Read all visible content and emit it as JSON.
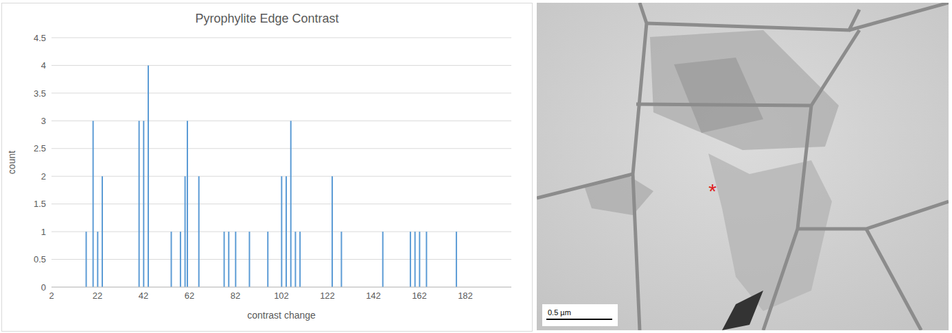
{
  "chart_data": {
    "type": "bar",
    "title": "Pyrophylite Edge Contrast",
    "x_label": "contrast change",
    "y_label": "count",
    "x": [
      17,
      20,
      22,
      24,
      40,
      42,
      44,
      54,
      58,
      60,
      61,
      66,
      77,
      79,
      82,
      88,
      96,
      102,
      104,
      106,
      108,
      110,
      124,
      128,
      146,
      158,
      160,
      162,
      165,
      178
    ],
    "values": [
      1,
      3,
      1,
      2,
      3,
      3,
      4,
      1,
      1,
      2,
      3,
      2,
      1,
      1,
      1,
      1,
      1,
      2,
      2,
      3,
      1,
      1,
      2,
      1,
      1,
      1,
      1,
      1,
      1,
      1
    ],
    "color": "#5b9bd5",
    "xlim": [
      2,
      202
    ],
    "xticks": [
      2,
      22,
      42,
      62,
      82,
      102,
      122,
      142,
      162,
      182
    ],
    "ylim": [
      0,
      4.5
    ],
    "yticks": [
      0,
      0.5,
      1,
      1.5,
      2,
      2.5,
      3,
      3.5,
      4,
      4.5
    ],
    "grid": true
  },
  "image": {
    "annotation": "*",
    "scale_bar": "0.5 µm"
  }
}
